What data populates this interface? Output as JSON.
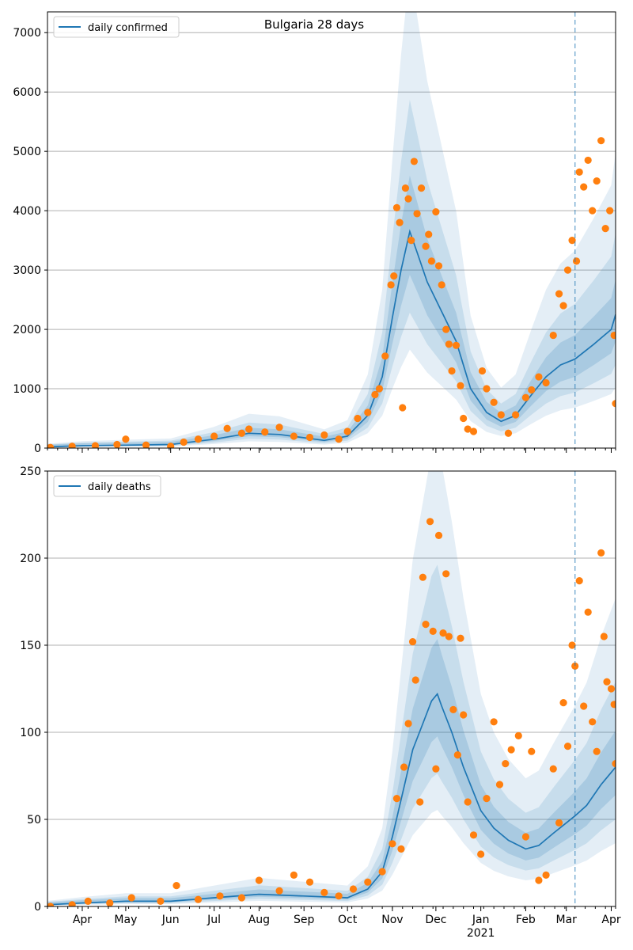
{
  "figure": {
    "title": "Bulgaria 28 days",
    "colors": {
      "line": "#1f77b4",
      "band": "#1f77b4",
      "points": "#ff7f0e",
      "grid": "#b0b0b0",
      "vline": "#1f77b4"
    }
  },
  "chart_data": [
    {
      "type": "line",
      "title": "Bulgaria 28 days",
      "xlabel": "",
      "ylabel": "",
      "legend": {
        "label": "daily confirmed",
        "placement": "top-left"
      },
      "ylim": [
        0,
        7350
      ],
      "xlim": [
        "2020-03-08",
        "2021-04-04"
      ],
      "grid": "horizontal",
      "y_ticks": [
        0,
        1000,
        2000,
        3000,
        4000,
        5000,
        6000,
        7000
      ],
      "forecast_start": "2021-03-07",
      "series": [
        {
          "name": "daily confirmed",
          "role": "model median",
          "points": [
            [
              "2020-03-08",
              20
            ],
            [
              "2020-04-01",
              40
            ],
            [
              "2020-05-01",
              50
            ],
            [
              "2020-06-01",
              60
            ],
            [
              "2020-07-01",
              150
            ],
            [
              "2020-07-25",
              250
            ],
            [
              "2020-08-15",
              230
            ],
            [
              "2020-09-15",
              130
            ],
            [
              "2020-10-01",
              200
            ],
            [
              "2020-10-15",
              550
            ],
            [
              "2020-10-25",
              1200
            ],
            [
              "2020-11-01",
              2200
            ],
            [
              "2020-11-07",
              3000
            ],
            [
              "2020-11-13",
              3650
            ],
            [
              "2020-11-18",
              3300
            ],
            [
              "2020-11-25",
              2800
            ],
            [
              "2020-12-05",
              2300
            ],
            [
              "2020-12-15",
              1800
            ],
            [
              "2020-12-25",
              1000
            ],
            [
              "2021-01-05",
              600
            ],
            [
              "2021-01-15",
              450
            ],
            [
              "2021-01-25",
              550
            ],
            [
              "2021-02-05",
              900
            ],
            [
              "2021-02-15",
              1200
            ],
            [
              "2021-02-25",
              1400
            ],
            [
              "2021-03-07",
              1500
            ],
            [
              "2021-03-20",
              1750
            ],
            [
              "2021-04-01",
              2000
            ],
            [
              "2021-04-04",
              2250
            ]
          ]
        },
        {
          "name": "",
          "role": "observed",
          "points": [
            [
              "2020-03-10",
              10
            ],
            [
              "2020-03-25",
              30
            ],
            [
              "2020-04-10",
              40
            ],
            [
              "2020-04-25",
              60
            ],
            [
              "2020-05-01",
              150
            ],
            [
              "2020-05-15",
              50
            ],
            [
              "2020-06-01",
              30
            ],
            [
              "2020-06-10",
              100
            ],
            [
              "2020-06-20",
              150
            ],
            [
              "2020-07-01",
              200
            ],
            [
              "2020-07-10",
              330
            ],
            [
              "2020-07-20",
              250
            ],
            [
              "2020-07-25",
              320
            ],
            [
              "2020-08-05",
              270
            ],
            [
              "2020-08-15",
              350
            ],
            [
              "2020-08-25",
              200
            ],
            [
              "2020-09-05",
              180
            ],
            [
              "2020-09-15",
              220
            ],
            [
              "2020-09-25",
              150
            ],
            [
              "2020-10-01",
              280
            ],
            [
              "2020-10-08",
              500
            ],
            [
              "2020-10-15",
              600
            ],
            [
              "2020-10-20",
              900
            ],
            [
              "2020-10-23",
              1000
            ],
            [
              "2020-10-27",
              1550
            ],
            [
              "2020-10-31",
              2750
            ],
            [
              "2020-11-02",
              2900
            ],
            [
              "2020-11-04",
              4050
            ],
            [
              "2020-11-06",
              3800
            ],
            [
              "2020-11-08",
              680
            ],
            [
              "2020-11-10",
              4380
            ],
            [
              "2020-11-12",
              4200
            ],
            [
              "2020-11-14",
              3500
            ],
            [
              "2020-11-16",
              4830
            ],
            [
              "2020-11-18",
              3950
            ],
            [
              "2020-11-21",
              4380
            ],
            [
              "2020-11-24",
              3400
            ],
            [
              "2020-11-26",
              3600
            ],
            [
              "2020-11-28",
              3150
            ],
            [
              "2020-12-01",
              3980
            ],
            [
              "2020-12-03",
              3070
            ],
            [
              "2020-12-05",
              2750
            ],
            [
              "2020-12-08",
              2000
            ],
            [
              "2020-12-10",
              1750
            ],
            [
              "2020-12-12",
              1300
            ],
            [
              "2020-12-15",
              1730
            ],
            [
              "2020-12-18",
              1050
            ],
            [
              "2020-12-20",
              500
            ],
            [
              "2020-12-23",
              320
            ],
            [
              "2020-12-27",
              280
            ],
            [
              "2021-01-02",
              1300
            ],
            [
              "2021-01-05",
              1000
            ],
            [
              "2021-01-10",
              770
            ],
            [
              "2021-01-15",
              560
            ],
            [
              "2021-01-20",
              250
            ],
            [
              "2021-01-25",
              560
            ],
            [
              "2021-02-01",
              850
            ],
            [
              "2021-02-05",
              980
            ],
            [
              "2021-02-10",
              1200
            ],
            [
              "2021-02-15",
              1100
            ],
            [
              "2021-02-20",
              1900
            ],
            [
              "2021-02-24",
              2600
            ],
            [
              "2021-02-27",
              2400
            ],
            [
              "2021-03-02",
              3000
            ],
            [
              "2021-03-05",
              3500
            ],
            [
              "2021-03-08",
              3150
            ],
            [
              "2021-03-10",
              4650
            ],
            [
              "2021-03-13",
              4400
            ],
            [
              "2021-03-16",
              4850
            ],
            [
              "2021-03-19",
              4000
            ],
            [
              "2021-03-22",
              4500
            ],
            [
              "2021-03-25",
              5180
            ],
            [
              "2021-03-28",
              3700
            ],
            [
              "2021-03-31",
              4000
            ],
            [
              "2021-04-03",
              1900
            ],
            [
              "2021-04-04",
              750
            ]
          ]
        }
      ]
    },
    {
      "type": "line",
      "title": "",
      "xlabel": "",
      "ylabel": "",
      "legend": {
        "label": "daily deaths",
        "placement": "top-left"
      },
      "ylim": [
        0,
        250
      ],
      "xlim": [
        "2020-03-08",
        "2021-04-04"
      ],
      "grid": "horizontal",
      "y_ticks": [
        0,
        50,
        100,
        150,
        200,
        250
      ],
      "x_ticks": [
        {
          "date": "2020-04-01",
          "label": "Apr"
        },
        {
          "date": "2020-05-01",
          "label": "May"
        },
        {
          "date": "2020-06-01",
          "label": "Jun"
        },
        {
          "date": "2020-07-01",
          "label": "Jul"
        },
        {
          "date": "2020-08-01",
          "label": "Aug"
        },
        {
          "date": "2020-09-01",
          "label": "Sep"
        },
        {
          "date": "2020-10-01",
          "label": "Oct"
        },
        {
          "date": "2020-11-01",
          "label": "Nov"
        },
        {
          "date": "2020-12-01",
          "label": "Dec"
        },
        {
          "date": "2021-01-01",
          "label": "Jan"
        },
        {
          "date": "2021-02-01",
          "label": "Feb"
        },
        {
          "date": "2021-03-01",
          "label": "Mar"
        },
        {
          "date": "2021-04-01",
          "label": "Apr"
        }
      ],
      "x_year_label": "2021",
      "forecast_start": "2021-03-07",
      "series": [
        {
          "name": "daily deaths",
          "role": "model median",
          "points": [
            [
              "2020-03-08",
              1
            ],
            [
              "2020-04-01",
              2
            ],
            [
              "2020-05-01",
              3
            ],
            [
              "2020-06-01",
              3
            ],
            [
              "2020-07-01",
              5
            ],
            [
              "2020-08-01",
              7
            ],
            [
              "2020-09-01",
              6
            ],
            [
              "2020-10-01",
              5
            ],
            [
              "2020-10-15",
              10
            ],
            [
              "2020-10-25",
              20
            ],
            [
              "2020-11-01",
              40
            ],
            [
              "2020-11-08",
              65
            ],
            [
              "2020-11-15",
              90
            ],
            [
              "2020-11-22",
              105
            ],
            [
              "2020-11-28",
              118
            ],
            [
              "2020-12-02",
              122
            ],
            [
              "2020-12-05",
              115
            ],
            [
              "2020-12-12",
              100
            ],
            [
              "2020-12-20",
              80
            ],
            [
              "2021-01-01",
              55
            ],
            [
              "2021-01-10",
              45
            ],
            [
              "2021-01-20",
              38
            ],
            [
              "2021-02-01",
              33
            ],
            [
              "2021-02-10",
              35
            ],
            [
              "2021-02-20",
              42
            ],
            [
              "2021-03-01",
              48
            ],
            [
              "2021-03-07",
              52
            ],
            [
              "2021-03-15",
              58
            ],
            [
              "2021-03-25",
              70
            ],
            [
              "2021-04-04",
              80
            ]
          ]
        },
        {
          "name": "",
          "role": "observed",
          "points": [
            [
              "2020-03-10",
              0
            ],
            [
              "2020-03-25",
              1
            ],
            [
              "2020-04-05",
              3
            ],
            [
              "2020-04-20",
              2
            ],
            [
              "2020-05-05",
              5
            ],
            [
              "2020-05-25",
              3
            ],
            [
              "2020-06-05",
              12
            ],
            [
              "2020-06-20",
              4
            ],
            [
              "2020-07-05",
              6
            ],
            [
              "2020-07-20",
              5
            ],
            [
              "2020-08-01",
              15
            ],
            [
              "2020-08-15",
              9
            ],
            [
              "2020-08-25",
              18
            ],
            [
              "2020-09-05",
              14
            ],
            [
              "2020-09-15",
              8
            ],
            [
              "2020-09-25",
              6
            ],
            [
              "2020-10-05",
              10
            ],
            [
              "2020-10-15",
              14
            ],
            [
              "2020-10-25",
              20
            ],
            [
              "2020-11-01",
              36
            ],
            [
              "2020-11-04",
              62
            ],
            [
              "2020-11-07",
              33
            ],
            [
              "2020-11-09",
              80
            ],
            [
              "2020-11-12",
              105
            ],
            [
              "2020-11-15",
              152
            ],
            [
              "2020-11-17",
              130
            ],
            [
              "2020-11-20",
              60
            ],
            [
              "2020-11-22",
              189
            ],
            [
              "2020-11-24",
              162
            ],
            [
              "2020-11-27",
              221
            ],
            [
              "2020-11-29",
              158
            ],
            [
              "2020-12-01",
              79
            ],
            [
              "2020-12-03",
              213
            ],
            [
              "2020-12-06",
              157
            ],
            [
              "2020-12-08",
              191
            ],
            [
              "2020-12-10",
              155
            ],
            [
              "2020-12-13",
              113
            ],
            [
              "2020-12-16",
              87
            ],
            [
              "2020-12-18",
              154
            ],
            [
              "2020-12-20",
              110
            ],
            [
              "2020-12-23",
              60
            ],
            [
              "2020-12-27",
              41
            ],
            [
              "2021-01-01",
              30
            ],
            [
              "2021-01-05",
              62
            ],
            [
              "2021-01-10",
              106
            ],
            [
              "2021-01-14",
              70
            ],
            [
              "2021-01-18",
              82
            ],
            [
              "2021-01-22",
              90
            ],
            [
              "2021-01-27",
              98
            ],
            [
              "2021-02-01",
              40
            ],
            [
              "2021-02-05",
              89
            ],
            [
              "2021-02-10",
              15
            ],
            [
              "2021-02-15",
              18
            ],
            [
              "2021-02-20",
              79
            ],
            [
              "2021-02-24",
              48
            ],
            [
              "2021-02-27",
              117
            ],
            [
              "2021-03-02",
              92
            ],
            [
              "2021-03-05",
              150
            ],
            [
              "2021-03-07",
              138
            ],
            [
              "2021-03-10",
              187
            ],
            [
              "2021-03-13",
              115
            ],
            [
              "2021-03-16",
              169
            ],
            [
              "2021-03-19",
              106
            ],
            [
              "2021-03-22",
              89
            ],
            [
              "2021-03-25",
              203
            ],
            [
              "2021-03-27",
              155
            ],
            [
              "2021-03-29",
              129
            ],
            [
              "2021-04-01",
              125
            ],
            [
              "2021-04-03",
              116
            ],
            [
              "2021-04-04",
              82
            ]
          ]
        }
      ]
    }
  ]
}
